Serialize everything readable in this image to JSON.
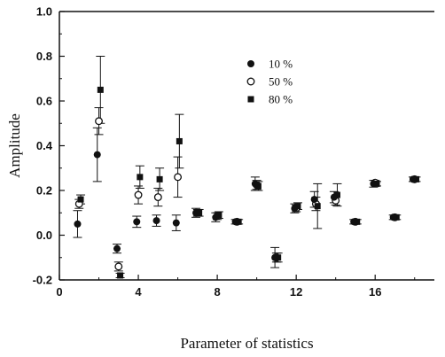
{
  "chart_data": {
    "type": "scatter",
    "xlabel": "Parameter of statistics",
    "ylabel": "Amplitude",
    "xlim": [
      0,
      19
    ],
    "ylim": [
      -0.2,
      1.0
    ],
    "x_ticks": [
      0,
      4,
      8,
      12,
      16
    ],
    "y_ticks": [
      -0.2,
      0.0,
      0.2,
      0.4,
      0.6,
      0.8,
      1.0
    ],
    "grid": false,
    "legend_position": "top-center",
    "series": [
      {
        "name": "10 %",
        "marker": "filled-circle",
        "points": [
          {
            "x": 1,
            "y": 0.05,
            "err": 0.06
          },
          {
            "x": 2,
            "y": 0.36,
            "err": 0.12
          },
          {
            "x": 3,
            "y": -0.06,
            "err": 0.02
          },
          {
            "x": 4,
            "y": 0.06,
            "err": 0.025
          },
          {
            "x": 5,
            "y": 0.065,
            "err": 0.025
          },
          {
            "x": 6,
            "y": 0.055,
            "err": 0.035
          },
          {
            "x": 7,
            "y": 0.1,
            "err": 0.02
          },
          {
            "x": 8,
            "y": 0.08,
            "err": 0.02
          },
          {
            "x": 9,
            "y": 0.06,
            "err": 0.01
          },
          {
            "x": 10,
            "y": 0.23,
            "err": 0.03
          },
          {
            "x": 11,
            "y": -0.1,
            "err": 0.045
          },
          {
            "x": 12,
            "y": 0.12,
            "err": 0.02
          },
          {
            "x": 13,
            "y": 0.16,
            "err": 0.035
          },
          {
            "x": 14,
            "y": 0.17,
            "err": 0.025
          },
          {
            "x": 15,
            "y": 0.06,
            "err": 0.01
          },
          {
            "x": 16,
            "y": 0.23,
            "err": 0.015
          },
          {
            "x": 17,
            "y": 0.08,
            "err": 0.01
          },
          {
            "x": 18,
            "y": 0.25,
            "err": 0.01
          }
        ]
      },
      {
        "name": "50 %",
        "marker": "open-circle",
        "points": [
          {
            "x": 1,
            "y": 0.14,
            "err": 0.02
          },
          {
            "x": 2,
            "y": 0.51,
            "err": 0.06
          },
          {
            "x": 3,
            "y": -0.14,
            "err": 0.02
          },
          {
            "x": 4,
            "y": 0.18,
            "err": 0.04
          },
          {
            "x": 5,
            "y": 0.17,
            "err": 0.04
          },
          {
            "x": 6,
            "y": 0.26,
            "err": 0.09
          },
          {
            "x": 7,
            "y": 0.1,
            "err": 0.015
          },
          {
            "x": 8,
            "y": 0.085,
            "err": 0.015
          },
          {
            "x": 9,
            "y": 0.06,
            "err": 0.01
          },
          {
            "x": 10,
            "y": 0.225,
            "err": 0.02
          },
          {
            "x": 11,
            "y": -0.1,
            "err": 0.02
          },
          {
            "x": 12,
            "y": 0.12,
            "err": 0.015
          },
          {
            "x": 13,
            "y": 0.14,
            "err": 0.03
          },
          {
            "x": 14,
            "y": 0.155,
            "err": 0.02
          },
          {
            "x": 15,
            "y": 0.06,
            "err": 0.01
          },
          {
            "x": 16,
            "y": 0.235,
            "err": 0.01
          },
          {
            "x": 17,
            "y": 0.08,
            "err": 0.01
          },
          {
            "x": 18,
            "y": 0.25,
            "err": 0.01
          }
        ]
      },
      {
        "name": "80 %",
        "marker": "filled-square",
        "points": [
          {
            "x": 1,
            "y": 0.16,
            "err": 0.02
          },
          {
            "x": 2,
            "y": 0.65,
            "err": 0.15
          },
          {
            "x": 3,
            "y": -0.18,
            "err": 0.01
          },
          {
            "x": 4,
            "y": 0.26,
            "err": 0.05
          },
          {
            "x": 5,
            "y": 0.25,
            "err": 0.05
          },
          {
            "x": 6,
            "y": 0.42,
            "err": 0.12
          },
          {
            "x": 7,
            "y": 0.1,
            "err": 0.015
          },
          {
            "x": 8,
            "y": 0.09,
            "err": 0.015
          },
          {
            "x": 9,
            "y": 0.06,
            "err": 0.01
          },
          {
            "x": 10,
            "y": 0.22,
            "err": 0.02
          },
          {
            "x": 11,
            "y": -0.1,
            "err": 0.02
          },
          {
            "x": 12,
            "y": 0.13,
            "err": 0.015
          },
          {
            "x": 13,
            "y": 0.13,
            "err": 0.1
          },
          {
            "x": 14,
            "y": 0.18,
            "err": 0.05
          },
          {
            "x": 15,
            "y": 0.06,
            "err": 0.01
          },
          {
            "x": 16,
            "y": 0.23,
            "err": 0.01
          },
          {
            "x": 17,
            "y": 0.08,
            "err": 0.01
          },
          {
            "x": 18,
            "y": 0.25,
            "err": 0.01
          }
        ]
      }
    ]
  }
}
